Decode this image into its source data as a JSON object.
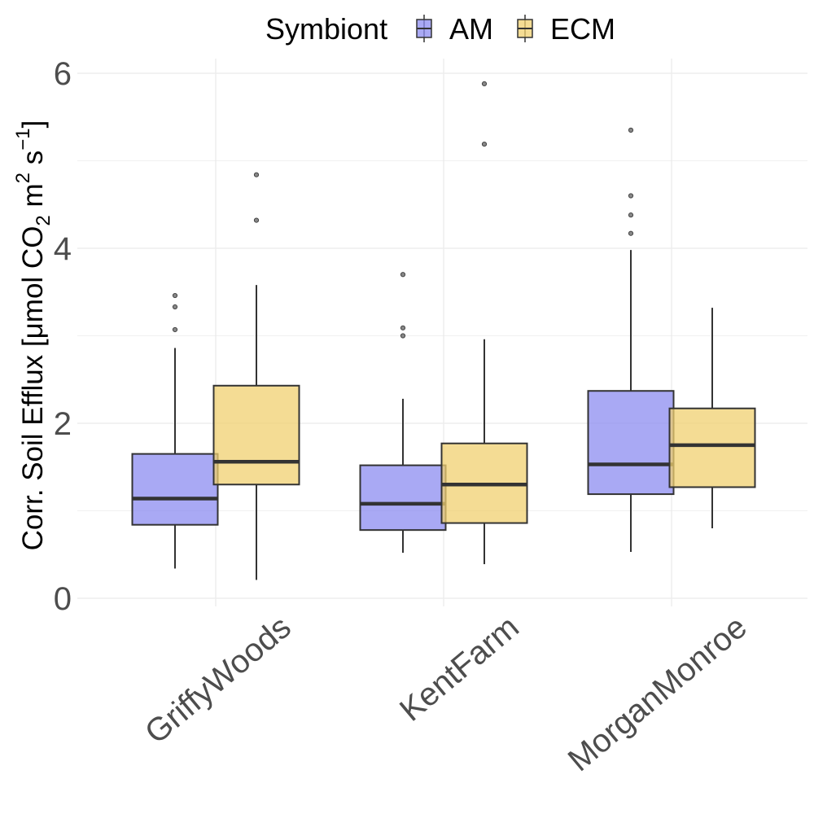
{
  "chart_data": {
    "type": "box",
    "ylabel": {
      "prefix": "Corr. Soil Efflux  [",
      "mu": "μ",
      "mol": "mol CO",
      "sub2": "2",
      "m": " m",
      "sup2": "2",
      "s": "  s",
      "supneg1": "−1",
      "close": "]"
    },
    "ylim": [
      0,
      6.15
    ],
    "yticks": [
      0,
      2,
      4,
      6
    ],
    "grid": true,
    "legend": {
      "title": "Symbiont",
      "position": "top",
      "entries": [
        "AM",
        "ECM"
      ]
    },
    "colors": {
      "AM": "#8c8cf0",
      "ECM": "#f0d070",
      "line": "#333333",
      "grid": "#ebebeb"
    },
    "categories": [
      "GriffyWoods",
      "KentFarm",
      "MorganMonroe"
    ],
    "series": [
      {
        "name": "AM",
        "boxes": [
          {
            "lower_whisker": 0.34,
            "q1": 0.84,
            "median": 1.14,
            "q3": 1.65,
            "upper_whisker": 2.86,
            "outliers": [
              3.07,
              3.33,
              3.46
            ]
          },
          {
            "lower_whisker": 0.52,
            "q1": 0.78,
            "median": 1.08,
            "q3": 1.52,
            "upper_whisker": 2.28,
            "outliers": [
              3.0,
              3.09,
              3.7
            ]
          },
          {
            "lower_whisker": 0.53,
            "q1": 1.19,
            "median": 1.53,
            "q3": 2.37,
            "upper_whisker": 3.98,
            "outliers": [
              4.17,
              4.38,
              4.6,
              5.35
            ]
          }
        ]
      },
      {
        "name": "ECM",
        "boxes": [
          {
            "lower_whisker": 0.21,
            "q1": 1.3,
            "median": 1.56,
            "q3": 2.43,
            "upper_whisker": 3.58,
            "outliers": [
              4.32,
              4.84
            ]
          },
          {
            "lower_whisker": 0.39,
            "q1": 0.86,
            "median": 1.3,
            "q3": 1.77,
            "upper_whisker": 2.96,
            "outliers": [
              5.19,
              5.88
            ]
          },
          {
            "lower_whisker": 0.8,
            "q1": 1.27,
            "median": 1.75,
            "q3": 2.17,
            "upper_whisker": 3.32,
            "outliers": []
          }
        ]
      }
    ]
  }
}
